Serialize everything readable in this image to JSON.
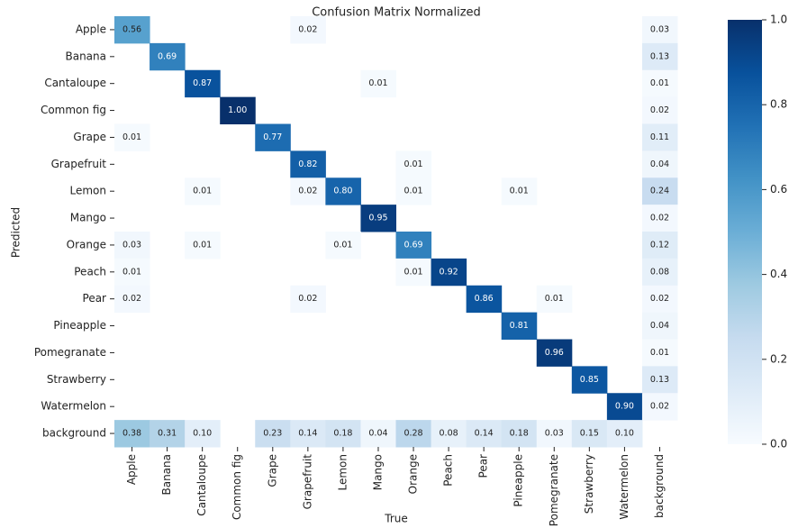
{
  "chart_data": {
    "type": "heatmap",
    "title": "Confusion Matrix Normalized",
    "x_label": "True",
    "y_label": "Predicted",
    "x_categories": [
      "Apple",
      "Banana",
      "Cantaloupe",
      "Common fig",
      "Grape",
      "Grapefruit",
      "Lemon",
      "Mango",
      "Orange",
      "Peach",
      "Pear",
      "Pineapple",
      "Pomegranate",
      "Strawberry",
      "Watermelon",
      "background"
    ],
    "y_categories": [
      "Apple",
      "Banana",
      "Cantaloupe",
      "Common fig",
      "Grape",
      "Grapefruit",
      "Lemon",
      "Mango",
      "Orange",
      "Peach",
      "Pear",
      "Pineapple",
      "Pomegranate",
      "Strawberry",
      "Watermelon",
      "background"
    ],
    "values": [
      [
        0.56,
        null,
        null,
        null,
        null,
        0.02,
        null,
        null,
        null,
        null,
        null,
        null,
        null,
        null,
        null,
        0.03
      ],
      [
        null,
        0.69,
        null,
        null,
        null,
        null,
        null,
        null,
        null,
        null,
        null,
        null,
        null,
        null,
        null,
        0.13
      ],
      [
        null,
        null,
        0.87,
        null,
        null,
        null,
        null,
        0.01,
        null,
        null,
        null,
        null,
        null,
        null,
        null,
        0.01
      ],
      [
        null,
        null,
        null,
        1.0,
        null,
        null,
        null,
        null,
        null,
        null,
        null,
        null,
        null,
        null,
        null,
        0.02
      ],
      [
        0.01,
        null,
        null,
        null,
        0.77,
        null,
        null,
        null,
        null,
        null,
        null,
        null,
        null,
        null,
        null,
        0.11
      ],
      [
        null,
        null,
        null,
        null,
        null,
        0.82,
        null,
        null,
        0.01,
        null,
        null,
        null,
        null,
        null,
        null,
        0.04
      ],
      [
        null,
        null,
        0.01,
        null,
        null,
        0.02,
        0.8,
        null,
        0.01,
        null,
        null,
        0.01,
        null,
        null,
        null,
        0.24
      ],
      [
        null,
        null,
        null,
        null,
        null,
        null,
        null,
        0.95,
        null,
        null,
        null,
        null,
        null,
        null,
        null,
        0.02
      ],
      [
        0.03,
        null,
        0.01,
        null,
        null,
        null,
        0.01,
        null,
        0.69,
        null,
        null,
        null,
        null,
        null,
        null,
        0.12
      ],
      [
        0.01,
        null,
        null,
        null,
        null,
        null,
        null,
        null,
        0.01,
        0.92,
        null,
        null,
        null,
        null,
        null,
        0.08
      ],
      [
        0.02,
        null,
        null,
        null,
        null,
        0.02,
        null,
        null,
        null,
        null,
        0.86,
        null,
        0.01,
        null,
        null,
        0.02
      ],
      [
        null,
        null,
        null,
        null,
        null,
        null,
        null,
        null,
        null,
        null,
        null,
        0.81,
        null,
        null,
        null,
        0.04
      ],
      [
        null,
        null,
        null,
        null,
        null,
        null,
        null,
        null,
        null,
        null,
        null,
        null,
        0.96,
        null,
        null,
        0.01
      ],
      [
        null,
        null,
        null,
        null,
        null,
        null,
        null,
        null,
        null,
        null,
        null,
        null,
        null,
        0.85,
        null,
        0.13
      ],
      [
        null,
        null,
        null,
        null,
        null,
        null,
        null,
        null,
        null,
        null,
        null,
        null,
        null,
        null,
        0.9,
        0.02
      ],
      [
        0.38,
        0.31,
        0.1,
        null,
        0.23,
        0.14,
        0.18,
        0.04,
        0.28,
        0.08,
        0.14,
        0.18,
        0.03,
        0.15,
        0.1,
        null
      ]
    ],
    "value_labels": [
      [
        "0.56",
        null,
        null,
        null,
        null,
        "0.02",
        null,
        null,
        null,
        null,
        null,
        null,
        null,
        null,
        null,
        "0.03"
      ],
      [
        null,
        "0.69",
        null,
        null,
        null,
        null,
        null,
        null,
        null,
        null,
        null,
        null,
        null,
        null,
        null,
        "0.13"
      ],
      [
        null,
        null,
        "0.87",
        null,
        null,
        null,
        null,
        "0.01",
        null,
        null,
        null,
        null,
        null,
        null,
        null,
        "0.01"
      ],
      [
        null,
        null,
        null,
        "1.00",
        null,
        null,
        null,
        null,
        null,
        null,
        null,
        null,
        null,
        null,
        null,
        "0.02"
      ],
      [
        "0.01",
        null,
        null,
        null,
        "0.77",
        null,
        null,
        null,
        null,
        null,
        null,
        null,
        null,
        null,
        null,
        "0.11"
      ],
      [
        null,
        null,
        null,
        null,
        null,
        "0.82",
        null,
        null,
        "0.01",
        null,
        null,
        null,
        null,
        null,
        null,
        "0.04"
      ],
      [
        null,
        null,
        "0.01",
        null,
        null,
        "0.02",
        "0.80",
        null,
        "0.01",
        null,
        null,
        "0.01",
        null,
        null,
        null,
        "0.24"
      ],
      [
        null,
        null,
        null,
        null,
        null,
        null,
        null,
        "0.95",
        null,
        null,
        null,
        null,
        null,
        null,
        null,
        "0.02"
      ],
      [
        "0.03",
        null,
        "0.01",
        null,
        null,
        null,
        "0.01",
        null,
        "0.69",
        null,
        null,
        null,
        null,
        null,
        null,
        "0.12"
      ],
      [
        "0.01",
        null,
        null,
        null,
        null,
        null,
        null,
        null,
        "0.01",
        "0.92",
        null,
        null,
        null,
        null,
        null,
        "0.08"
      ],
      [
        "0.02",
        null,
        null,
        null,
        null,
        "0.02",
        null,
        null,
        null,
        null,
        "0.86",
        null,
        "0.01",
        null,
        null,
        "0.02"
      ],
      [
        null,
        null,
        null,
        null,
        null,
        null,
        null,
        null,
        null,
        null,
        null,
        "0.81",
        null,
        null,
        null,
        "0.04"
      ],
      [
        null,
        null,
        null,
        null,
        null,
        null,
        null,
        null,
        null,
        null,
        null,
        null,
        "0.96",
        null,
        null,
        "0.01"
      ],
      [
        null,
        null,
        null,
        null,
        null,
        null,
        null,
        null,
        null,
        null,
        null,
        null,
        null,
        "0.85",
        null,
        "0.13"
      ],
      [
        null,
        null,
        null,
        null,
        null,
        null,
        null,
        null,
        null,
        null,
        null,
        null,
        null,
        null,
        "0.90",
        "0.02"
      ],
      [
        "0.38",
        "0.31",
        "0.10",
        null,
        "0.23",
        "0.14",
        "0.18",
        "0.04",
        "0.28",
        "0.08",
        "0.14",
        "0.18",
        "0.03",
        "0.15",
        "0.10",
        null
      ]
    ],
    "colormap": [
      "#f7fbff",
      "#deebf7",
      "#c6dbef",
      "#9ecae1",
      "#6baed6",
      "#4292c6",
      "#2171b5",
      "#08519c",
      "#08306b"
    ],
    "clim": [
      0,
      1
    ],
    "cticks": [
      {
        "value": 0,
        "label": "0.0"
      },
      {
        "value": 0.2,
        "label": "0.2"
      },
      {
        "value": 0.4,
        "label": "0.4"
      },
      {
        "value": 0.6,
        "label": "0.6"
      },
      {
        "value": 0.8,
        "label": "0.8"
      },
      {
        "value": 1,
        "label": "1.0"
      }
    ]
  }
}
